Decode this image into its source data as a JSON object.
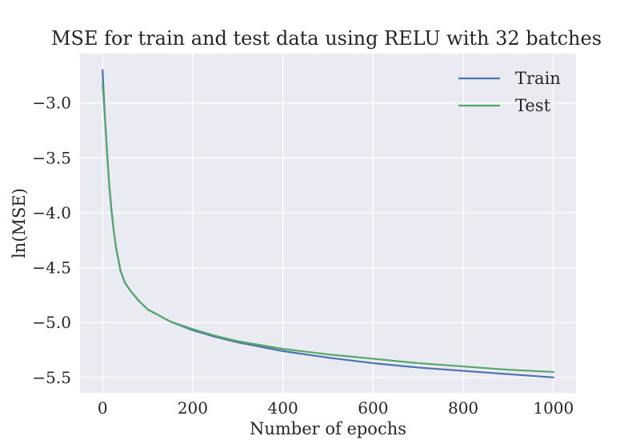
{
  "chart_data": {
    "type": "line",
    "title": "MSE for train and test data using RELU with 32 batches",
    "xlabel": "Number of epochs",
    "ylabel": "ln(MSE)",
    "xlim": [
      -50,
      1050
    ],
    "ylim": [
      -5.64,
      -2.55
    ],
    "xticks": [
      0,
      200,
      400,
      600,
      800,
      1000
    ],
    "xtick_labels": [
      "0",
      "200",
      "400",
      "600",
      "800",
      "1000"
    ],
    "yticks": [
      -3.0,
      -3.5,
      -4.0,
      -4.5,
      -5.0,
      -5.5
    ],
    "ytick_labels": [
      "−3.0",
      "−3.5",
      "−4.0",
      "−4.5",
      "−5.0",
      "−5.5"
    ],
    "grid": true,
    "legend_position": "top-right",
    "series": [
      {
        "name": "Train",
        "color": "#4c72b0",
        "x": [
          0,
          5,
          10,
          15,
          20,
          25,
          30,
          40,
          50,
          60,
          80,
          100,
          150,
          200,
          250,
          300,
          400,
          500,
          600,
          700,
          800,
          900,
          1000
        ],
        "y": [
          -2.7,
          -3.1,
          -3.45,
          -3.75,
          -3.98,
          -4.17,
          -4.32,
          -4.53,
          -4.64,
          -4.7,
          -4.8,
          -4.88,
          -4.99,
          -5.07,
          -5.13,
          -5.18,
          -5.26,
          -5.32,
          -5.37,
          -5.41,
          -5.44,
          -5.47,
          -5.5
        ]
      },
      {
        "name": "Test",
        "color": "#55a868",
        "x": [
          0,
          5,
          10,
          15,
          20,
          25,
          30,
          40,
          50,
          60,
          80,
          100,
          150,
          200,
          250,
          300,
          400,
          500,
          600,
          700,
          800,
          900,
          1000
        ],
        "y": [
          -2.82,
          -3.12,
          -3.46,
          -3.76,
          -3.99,
          -4.17,
          -4.32,
          -4.53,
          -4.64,
          -4.7,
          -4.8,
          -4.88,
          -4.99,
          -5.06,
          -5.12,
          -5.17,
          -5.24,
          -5.29,
          -5.33,
          -5.37,
          -5.4,
          -5.43,
          -5.45
        ]
      }
    ]
  }
}
